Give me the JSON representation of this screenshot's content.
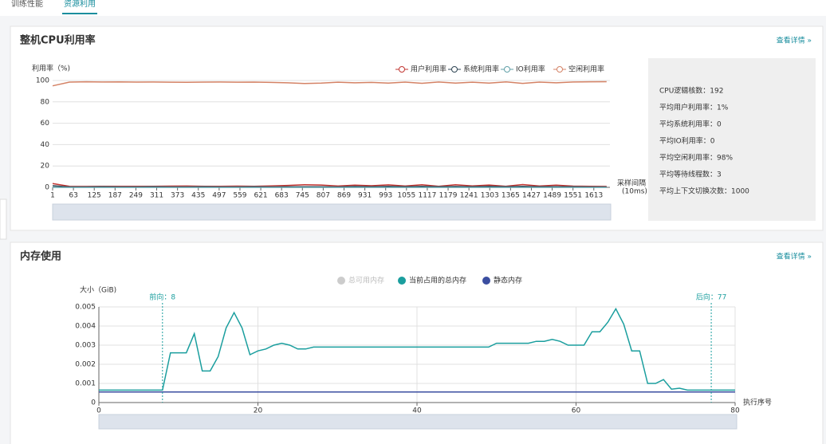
{
  "tabs": [
    "训练性能",
    "资源利用"
  ],
  "panels": [
    {
      "title": "整机CPU利用率",
      "link": "查看详情 »",
      "stats": [
        "CPU逻辑核数：192",
        "平均用户利用率：1%",
        "平均系统利用率：0",
        "平均IO利用率：0",
        "平均空闲利用率：98%",
        "平均等待线程数：3",
        "平均上下文切换次数：1000"
      ]
    },
    {
      "title": "内存使用",
      "link": "查看详情 »"
    }
  ],
  "chart_data": [
    {
      "type": "line",
      "y_label": "利用率（%)",
      "x_label": [
        "采样间隔",
        "(10ms)"
      ],
      "x": [
        1,
        51,
        101,
        151,
        201,
        251,
        301,
        351,
        401,
        451,
        501,
        551,
        601,
        651,
        701,
        751,
        801,
        851,
        901,
        951,
        1001,
        1051,
        1101,
        1151,
        1201,
        1251,
        1301,
        1351,
        1401,
        1451,
        1501,
        1551,
        1601,
        1651
      ],
      "series": [
        {
          "name": "用户利用率",
          "color": "#c23531",
          "values": [
            3.5,
            1,
            0.8,
            1,
            0.9,
            1,
            0.9,
            1.1,
            1.2,
            1,
            0.9,
            1.1,
            1,
            1.3,
            1.8,
            2.5,
            2.2,
            1.2,
            2,
            1.5,
            2.3,
            1.2,
            2.4,
            1,
            2.4,
            1.3,
            2.2,
            1,
            2.6,
            1.2,
            2,
            1.1,
            0.9,
            0.8
          ]
        },
        {
          "name": "系统利用率",
          "color": "#2f4554",
          "values": [
            1.5,
            0.4,
            0.4,
            0.5,
            0.4,
            0.4,
            0.5,
            0.4,
            0.4,
            0.5,
            0.4,
            0.4,
            0.5,
            0.4,
            0.5,
            0.6,
            0.5,
            0.4,
            0.8,
            0.5,
            0.9,
            0.5,
            0.9,
            0.5,
            0.8,
            0.5,
            0.9,
            0.5,
            0.9,
            0.5,
            0.7,
            0.5,
            0.4,
            0.4
          ]
        },
        {
          "name": "IO利用率",
          "color": "#61a0a8",
          "values": [
            0,
            0,
            0,
            0,
            0,
            0,
            0,
            0,
            0,
            0,
            0,
            0,
            0,
            0,
            0,
            0,
            0,
            0,
            0,
            0,
            0,
            0,
            0,
            0,
            0,
            0,
            0,
            0,
            0,
            0,
            0,
            0,
            0,
            0
          ]
        },
        {
          "name": "空闲利用率",
          "color": "#d48265",
          "values": [
            95,
            98.5,
            98.8,
            98.6,
            98.7,
            98.5,
            98.6,
            98.4,
            98.3,
            98.5,
            98.6,
            98.4,
            98.5,
            98.2,
            97.8,
            97.2,
            97.5,
            98.4,
            97.8,
            98.2,
            97.6,
            98.5,
            97.4,
            98.6,
            97.5,
            98.4,
            97.6,
            98.7,
            97.3,
            98.5,
            97.8,
            98.6,
            98.8,
            98.9
          ]
        }
      ],
      "xlim": [
        1,
        1661
      ],
      "xticks": [
        1,
        63,
        125,
        187,
        249,
        311,
        373,
        435,
        497,
        559,
        621,
        683,
        745,
        807,
        869,
        931,
        993,
        1055,
        1117,
        1179,
        1241,
        1303,
        1365,
        1427,
        1489,
        1551,
        1613
      ],
      "ylim": [
        0,
        100
      ],
      "yticks": [
        0,
        20,
        40,
        60,
        80,
        100
      ],
      "grid": true,
      "xgrid": false,
      "legend": "top-right"
    },
    {
      "type": "line",
      "y_label": "大小（GiB)",
      "x_label": [
        "执行序号"
      ],
      "x": [
        0,
        1,
        2,
        3,
        4,
        5,
        6,
        7,
        8,
        9,
        10,
        11,
        12,
        13,
        14,
        15,
        16,
        17,
        18,
        19,
        20,
        21,
        22,
        23,
        24,
        25,
        26,
        27,
        28,
        29,
        30,
        31,
        32,
        33,
        34,
        35,
        36,
        37,
        38,
        39,
        40,
        41,
        42,
        43,
        44,
        45,
        46,
        47,
        48,
        49,
        50,
        51,
        52,
        53,
        54,
        55,
        56,
        57,
        58,
        59,
        60,
        61,
        62,
        63,
        64,
        65,
        66,
        67,
        68,
        69,
        70,
        71,
        72,
        73,
        74,
        75,
        76,
        77,
        78,
        79,
        80
      ],
      "series": [
        {
          "name": "总可用内存",
          "color": "#cccccc",
          "visible": false
        },
        {
          "name": "当前占用的总内存",
          "color": "#1a9e9e",
          "values": [
            0.00065,
            0.00065,
            0.00065,
            0.00065,
            0.00065,
            0.00065,
            0.00065,
            0.00065,
            0.00065,
            0.0026,
            0.0026,
            0.0026,
            0.0036,
            0.00165,
            0.00165,
            0.0024,
            0.0039,
            0.0047,
            0.0039,
            0.0025,
            0.0027,
            0.0028,
            0.003,
            0.0031,
            0.003,
            0.0028,
            0.0028,
            0.0029,
            0.0029,
            0.0029,
            0.0029,
            0.0029,
            0.0029,
            0.0029,
            0.0029,
            0.0029,
            0.0029,
            0.0029,
            0.0029,
            0.0029,
            0.0029,
            0.0029,
            0.0029,
            0.0029,
            0.0029,
            0.0029,
            0.0029,
            0.0029,
            0.0029,
            0.0029,
            0.0031,
            0.0031,
            0.0031,
            0.0031,
            0.0031,
            0.0032,
            0.0032,
            0.0033,
            0.0032,
            0.003,
            0.003,
            0.003,
            0.0037,
            0.0037,
            0.0042,
            0.0049,
            0.0041,
            0.0027,
            0.0027,
            0.001,
            0.001,
            0.0012,
            0.0007,
            0.00075,
            0.00065,
            0.00065,
            0.00065,
            0.00065,
            0.00065,
            0.00065,
            0.00065
          ]
        },
        {
          "name": "静态内存",
          "color": "#3b4ea0",
          "values": [
            0.00055,
            0.00055,
            0.00055,
            0.00055,
            0.00055,
            0.00055,
            0.00055,
            0.00055,
            0.00055,
            0.00055,
            0.00055,
            0.00055,
            0.00055,
            0.00055,
            0.00055,
            0.00055,
            0.00055,
            0.00055,
            0.00055,
            0.00055,
            0.00055,
            0.00055,
            0.00055,
            0.00055,
            0.00055,
            0.00055,
            0.00055,
            0.00055,
            0.00055,
            0.00055,
            0.00055,
            0.00055,
            0.00055,
            0.00055,
            0.00055,
            0.00055,
            0.00055,
            0.00055,
            0.00055,
            0.00055,
            0.00055,
            0.00055,
            0.00055,
            0.00055,
            0.00055,
            0.00055,
            0.00055,
            0.00055,
            0.00055,
            0.00055,
            0.00055,
            0.00055,
            0.00055,
            0.00055,
            0.00055,
            0.00055,
            0.00055,
            0.00055,
            0.00055,
            0.00055,
            0.00055,
            0.00055,
            0.00055,
            0.00055,
            0.00055,
            0.00055,
            0.00055,
            0.00055,
            0.00055,
            0.00055,
            0.00055,
            0.00055,
            0.00055,
            0.00055,
            0.00055,
            0.00055,
            0.00055,
            0.00055,
            0.00055,
            0.00055,
            0.00055
          ]
        }
      ],
      "markers": [
        {
          "x": 8,
          "label": "前向：8"
        },
        {
          "x": 77,
          "label": "后向：77"
        }
      ],
      "xlim": [
        0,
        80
      ],
      "xticks": [
        0,
        20,
        40,
        60,
        80
      ],
      "ylim": [
        0,
        0.005
      ],
      "yticks": [
        0,
        0.001,
        0.002,
        0.003,
        0.004,
        0.005
      ],
      "grid": true,
      "xgrid": true,
      "legend": "top-center"
    }
  ]
}
